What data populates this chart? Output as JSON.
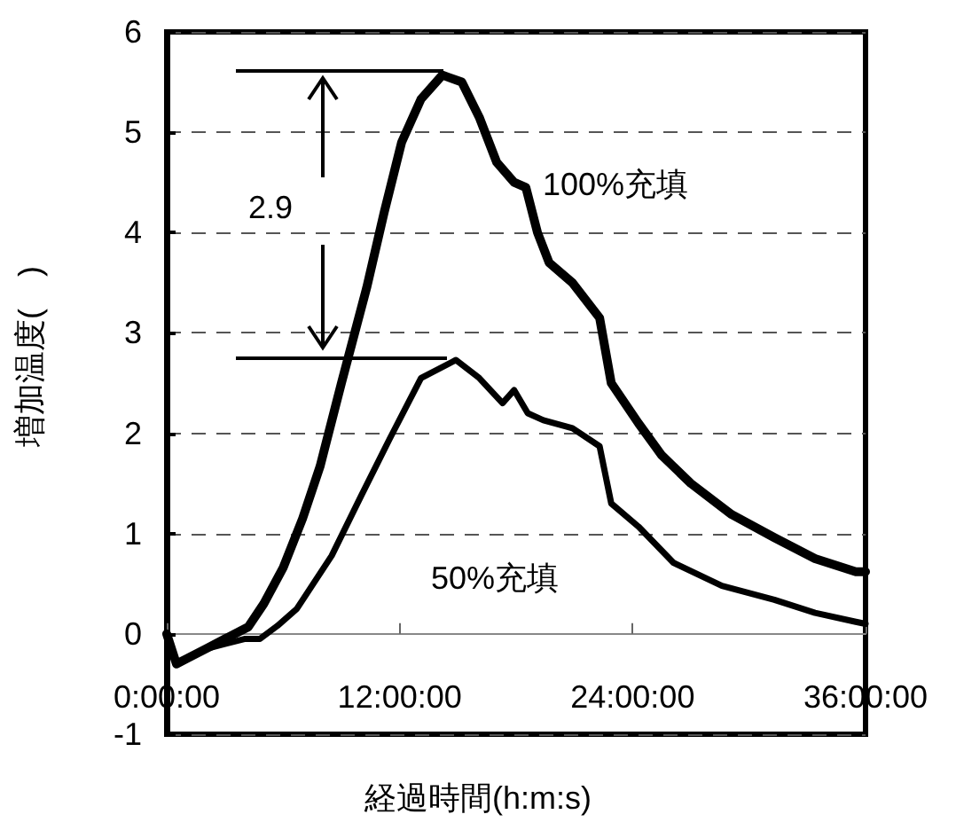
{
  "chart_data": {
    "type": "line",
    "xlabel": "経過時間(h:m:s)",
    "ylabel": "増加温度(　)",
    "xlim": [
      0,
      36
    ],
    "xticks": [
      {
        "value": 0,
        "label": "0:00:00"
      },
      {
        "value": 12,
        "label": "12:00:00"
      },
      {
        "value": 24,
        "label": "24:00:00"
      },
      {
        "value": 36,
        "label": "36:00:00"
      }
    ],
    "ylim": [
      -1,
      6
    ],
    "yticks": [
      -1,
      0,
      1,
      2,
      3,
      4,
      5,
      6
    ],
    "grid": "y",
    "legend": false,
    "marker": "none",
    "line_style": "solid",
    "annotations": [
      "2.9"
    ],
    "series": [
      {
        "name": "100%充填",
        "color": "#000000",
        "x": [
          0,
          0.5,
          1,
          2,
          3,
          4.2,
          5,
          6,
          7,
          7.9,
          9,
          10.3,
          11.2,
          12.1,
          13.1,
          14.2,
          15.2,
          16.1,
          17,
          17.9,
          18.5,
          19.1,
          19.7,
          20.9,
          22.3,
          22.9,
          24.3,
          25.5,
          27,
          29.1,
          31.3,
          33.4,
          35.5,
          36
        ],
        "values": [
          0,
          -0.3,
          -0.25,
          -0.15,
          -0.05,
          0.07,
          0.3,
          0.66,
          1.15,
          1.67,
          2.5,
          3.45,
          4.2,
          4.9,
          5.33,
          5.57,
          5.5,
          5.15,
          4.7,
          4.5,
          4.45,
          4.0,
          3.7,
          3.5,
          3.15,
          2.5,
          2.1,
          1.78,
          1.5,
          1.19,
          0.96,
          0.75,
          0.62,
          0.62
        ]
      },
      {
        "name": "50%充填",
        "color": "#000000",
        "x": [
          0,
          0.5,
          1,
          2,
          3,
          4,
          4.8,
          5.7,
          6.7,
          8.5,
          10,
          11.5,
          13.1,
          14.9,
          16.1,
          17.3,
          17.9,
          18.6,
          19.4,
          20.9,
          22.3,
          22.9,
          24.3,
          26.1,
          28.6,
          31.3,
          33.4,
          35.5,
          36
        ],
        "values": [
          0,
          -0.3,
          -0.25,
          -0.15,
          -0.1,
          -0.05,
          -0.05,
          0.08,
          0.25,
          0.78,
          1.37,
          1.95,
          2.55,
          2.73,
          2.55,
          2.3,
          2.43,
          2.2,
          2.13,
          2.05,
          1.87,
          1.3,
          1.07,
          0.71,
          0.48,
          0.34,
          0.21,
          0.12,
          0.1
        ]
      }
    ]
  }
}
